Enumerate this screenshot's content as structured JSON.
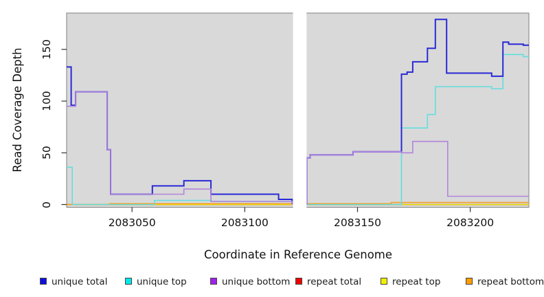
{
  "chart_data": {
    "type": "line",
    "subtype": "step-coverage-plot",
    "title": "",
    "xlabel": "Coordinate in Reference Genome",
    "ylabel": "Read Coverage Depth",
    "x_range": [
      2083021,
      2083226
    ],
    "y_range": [
      0,
      185
    ],
    "x_ticks": [
      2083050,
      2083100,
      2083150,
      2083200
    ],
    "x_tick_labels": [
      "2083050",
      "2083100",
      "2083150",
      "2083200"
    ],
    "y_ticks": [
      0,
      50,
      100,
      150
    ],
    "y_tick_labels": [
      "0",
      "50",
      "100",
      "150"
    ],
    "panel_background": "#d9d9d9",
    "panel_border_color": "#7f7f7f",
    "gap_region": {
      "start": 2083121.4,
      "end": 2083127.4,
      "color": "#ffffff"
    },
    "grid": "off",
    "legend_position": "bottom",
    "legend": [
      {
        "label": "unique total",
        "color": "#0f0fe0"
      },
      {
        "label": "unique top",
        "color": "#00e8e8"
      },
      {
        "label": "unique bottom",
        "color": "#a020f0"
      },
      {
        "label": "repeat total",
        "color": "#ee0000"
      },
      {
        "label": "repeat top",
        "color": "#f0f000"
      },
      {
        "label": "repeat bottom",
        "color": "#ff9d00"
      }
    ],
    "series": [
      {
        "name": "repeat total",
        "line_color": "#e00000",
        "line_width": 1.4,
        "segments": [
          [
            [
              2083021,
              0
            ],
            [
              2083121,
              0
            ]
          ],
          [
            [
              2083127.5,
              0
            ],
            [
              2083226,
              0
            ]
          ]
        ]
      },
      {
        "name": "repeat top",
        "line_color": "#e8e800",
        "line_width": 1.4,
        "segments": [
          [
            [
              2083021,
              0
            ],
            [
              2083121,
              0
            ]
          ],
          [
            [
              2083127.5,
              0
            ],
            [
              2083226,
              0
            ]
          ]
        ]
      },
      {
        "name": "repeat bottom",
        "line_color": "#f59d22",
        "line_width": 1.6,
        "segments": [
          [
            [
              2083021,
              0
            ],
            [
              2083040,
              0.8
            ],
            [
              2083121,
              0.8
            ]
          ],
          [
            [
              2083127.5,
              0.8
            ],
            [
              2083165,
              2
            ],
            [
              2083226,
              2
            ]
          ]
        ]
      },
      {
        "name": "unique top",
        "line_color": "#63dede",
        "line_width": 1.6,
        "segments": [
          [
            [
              2083021,
              36
            ],
            [
              2083023.5,
              0
            ],
            [
              2083060,
              4
            ],
            [
              2083085,
              3
            ],
            [
              2083121,
              0
            ]
          ],
          [
            [
              2083127.5,
              0
            ],
            [
              2083169.5,
              74
            ],
            [
              2083181,
              87
            ],
            [
              2083184.5,
              114
            ],
            [
              2083209.5,
              112
            ],
            [
              2083214.5,
              145
            ],
            [
              2083223.5,
              143
            ],
            [
              2083226,
              143
            ]
          ]
        ]
      },
      {
        "name": "unique total",
        "line_color": "#2929d6",
        "line_width": 2,
        "segments": [
          [
            [
              2083021,
              133
            ],
            [
              2083023,
              96
            ],
            [
              2083025,
              109
            ],
            [
              2083039,
              53
            ],
            [
              2083040.5,
              10
            ],
            [
              2083059,
              18
            ],
            [
              2083073,
              23
            ],
            [
              2083085,
              10
            ],
            [
              2083115,
              5
            ],
            [
              2083121,
              0
            ]
          ],
          [
            [
              2083127.5,
              0
            ],
            [
              2083127.5,
              45
            ],
            [
              2083129,
              48
            ],
            [
              2083148,
              51
            ],
            [
              2083169.5,
              126
            ],
            [
              2083172,
              128
            ],
            [
              2083174.5,
              138
            ],
            [
              2083181,
              151
            ],
            [
              2083184.5,
              179
            ],
            [
              2083189.5,
              127
            ],
            [
              2083209.5,
              124
            ],
            [
              2083214.5,
              157
            ],
            [
              2083217,
              155
            ],
            [
              2083223.5,
              154
            ],
            [
              2083226,
              154
            ]
          ]
        ]
      },
      {
        "name": "unique bottom",
        "line_color": "#b283dc",
        "line_width": 1.6,
        "segments": [
          [
            [
              2083021,
              95
            ],
            [
              2083025,
              109
            ],
            [
              2083039,
              53
            ],
            [
              2083040.5,
              10
            ],
            [
              2083073,
              15
            ],
            [
              2083085,
              3
            ],
            [
              2083121,
              0
            ]
          ],
          [
            [
              2083127.5,
              0
            ],
            [
              2083127.5,
              45
            ],
            [
              2083129,
              48
            ],
            [
              2083148,
              51
            ],
            [
              2083169.5,
              50
            ],
            [
              2083174.5,
              61
            ],
            [
              2083190,
              8
            ],
            [
              2083226,
              8
            ]
          ]
        ]
      }
    ]
  }
}
